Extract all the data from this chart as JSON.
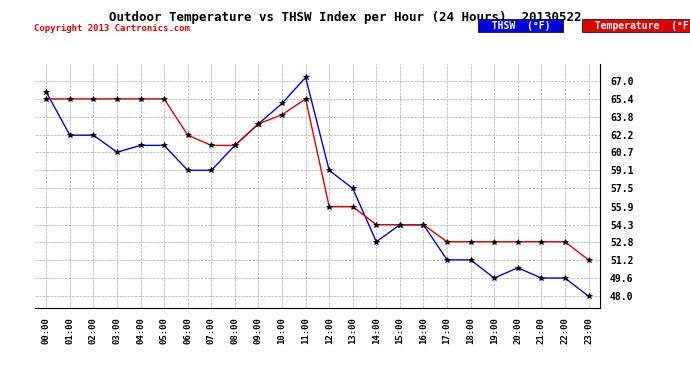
{
  "title": "Outdoor Temperature vs THSW Index per Hour (24 Hours)  20130522",
  "copyright": "Copyright 2013 Cartronics.com",
  "x_labels": [
    "00:00",
    "01:00",
    "02:00",
    "03:00",
    "04:00",
    "05:00",
    "06:00",
    "07:00",
    "08:00",
    "09:00",
    "10:00",
    "11:00",
    "12:00",
    "13:00",
    "14:00",
    "15:00",
    "16:00",
    "17:00",
    "18:00",
    "19:00",
    "20:00",
    "21:00",
    "22:00",
    "23:00"
  ],
  "thsw": [
    66.0,
    62.2,
    62.2,
    60.7,
    61.3,
    61.3,
    59.1,
    59.1,
    61.3,
    63.2,
    65.0,
    67.3,
    59.1,
    57.5,
    52.8,
    54.3,
    54.3,
    51.2,
    51.2,
    49.6,
    50.5,
    49.6,
    49.6,
    48.0
  ],
  "temperature": [
    65.4,
    65.4,
    65.4,
    65.4,
    65.4,
    65.4,
    62.2,
    61.3,
    61.3,
    63.2,
    64.0,
    65.4,
    55.9,
    55.9,
    54.3,
    54.3,
    54.3,
    52.8,
    52.8,
    52.8,
    52.8,
    52.8,
    52.8,
    51.2
  ],
  "thsw_color": "#0000dd",
  "temp_color": "#dd0000",
  "bg_color": "#ffffff",
  "grid_color": "#aaaaaa",
  "ylim_min": 47.0,
  "ylim_max": 68.5,
  "yticks": [
    48.0,
    49.6,
    51.2,
    52.8,
    54.3,
    55.9,
    57.5,
    59.1,
    60.7,
    62.2,
    63.8,
    65.4,
    67.0
  ],
  "legend_thsw_label": "THSW  (°F)",
  "legend_temp_label": "Temperature  (°F)",
  "legend_thsw_bg": "#0000dd",
  "legend_temp_bg": "#dd0000"
}
